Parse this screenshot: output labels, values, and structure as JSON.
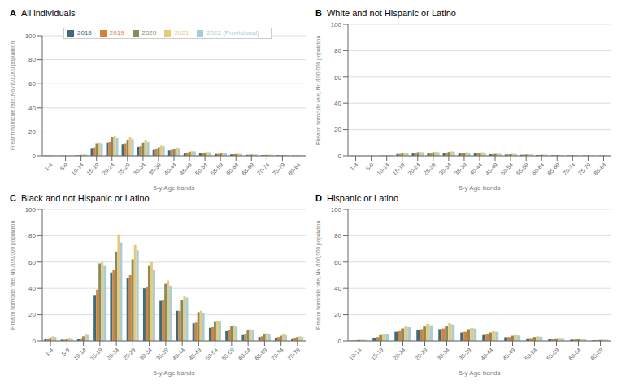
{
  "chart_data": [
    {
      "type": "bar",
      "annotations": [
        "A"
      ],
      "title": "All individuals",
      "xlabel": "5-y Age bands",
      "ylabel": "Firearm homicide rate, No./100,000 population",
      "categories": [
        "1-4",
        "5-9",
        "10-14",
        "15-19",
        "20-24",
        "25-29",
        "30-34",
        "35-39",
        "40-44",
        "45-49",
        "50-54",
        "55-59",
        "60-64",
        "65-69",
        "70-74",
        "75-79",
        "80-84"
      ],
      "series": [
        {
          "name": "2018",
          "color": "#3d6b7a",
          "values": [
            0.3,
            0.2,
            0.5,
            6.5,
            11.0,
            10.0,
            7.5,
            5.0,
            4.5,
            2.5,
            2.0,
            1.5,
            1.2,
            0.8,
            0.6,
            0.5,
            0.3
          ]
        },
        {
          "name": "2019",
          "color": "#d4813a",
          "values": [
            0.3,
            0.2,
            0.5,
            7.0,
            11.5,
            10.5,
            8.0,
            5.5,
            5.0,
            2.8,
            2.2,
            1.6,
            1.3,
            0.9,
            0.7,
            0.5,
            0.3
          ]
        },
        {
          "name": "2020",
          "color": "#8a8a5c",
          "values": [
            0.4,
            0.3,
            0.8,
            10.5,
            15.5,
            13.0,
            11.0,
            7.0,
            6.0,
            3.5,
            2.8,
            2.0,
            1.5,
            1.0,
            0.8,
            0.6,
            0.4
          ]
        },
        {
          "name": "2021",
          "color": "#e8c97a",
          "values": [
            0.5,
            0.4,
            1.2,
            11.0,
            17.0,
            15.5,
            13.0,
            8.5,
            7.0,
            4.0,
            3.2,
            2.5,
            1.8,
            1.2,
            1.0,
            0.8,
            0.5
          ]
        },
        {
          "name": "2022 (Provisional)",
          "color": "#a8cdd8",
          "values": [
            0.4,
            0.3,
            1.0,
            10.5,
            15.0,
            14.0,
            11.5,
            8.0,
            6.5,
            3.8,
            3.0,
            2.3,
            1.6,
            1.1,
            0.9,
            0.7,
            0.4
          ]
        }
      ],
      "ylim": [
        0,
        100
      ],
      "yticks": [
        0,
        20,
        40,
        60,
        80,
        100
      ],
      "grid": "y",
      "legend": "upper left"
    },
    {
      "type": "bar",
      "annotations": [
        "B"
      ],
      "title": "White and not Hispanic or Latino",
      "xlabel": "5-y Age bands",
      "ylabel": "Firearm homicide rate, No./100,000 population",
      "categories": [
        "1-4",
        "5-9",
        "10-14",
        "15-19",
        "20-24",
        "25-29",
        "30-34",
        "35-39",
        "40-44",
        "45-49",
        "50-54",
        "55-59",
        "60-64",
        "65-69",
        "70-74",
        "75-79",
        "80-84"
      ],
      "series": [
        {
          "name": "2018",
          "color": "#3d6b7a",
          "values": [
            0.1,
            0.1,
            0.2,
            1.4,
            2.2,
            2.2,
            2.3,
            2.0,
            2.0,
            1.2,
            1.0,
            0.8,
            0.6,
            0.4,
            0.3,
            0.3,
            0.2
          ]
        },
        {
          "name": "2019",
          "color": "#d4813a",
          "values": [
            0.1,
            0.1,
            0.2,
            1.5,
            2.3,
            2.3,
            2.5,
            2.1,
            2.2,
            1.3,
            1.1,
            0.9,
            0.7,
            0.5,
            0.4,
            0.3,
            0.2
          ]
        },
        {
          "name": "2020",
          "color": "#8a8a5c",
          "values": [
            0.1,
            0.1,
            0.3,
            2.0,
            2.8,
            2.8,
            3.0,
            2.5,
            2.5,
            1.5,
            1.3,
            1.0,
            0.8,
            0.6,
            0.5,
            0.4,
            0.3
          ]
        },
        {
          "name": "2021",
          "color": "#e8c97a",
          "values": [
            0.2,
            0.1,
            0.4,
            2.2,
            3.2,
            3.2,
            3.5,
            2.8,
            2.8,
            1.7,
            1.5,
            1.2,
            0.9,
            0.7,
            0.6,
            0.5,
            0.3
          ]
        },
        {
          "name": "2022 (Provisional)",
          "color": "#a8cdd8",
          "values": [
            0.1,
            0.1,
            0.3,
            2.0,
            2.8,
            2.8,
            3.2,
            2.5,
            2.5,
            1.6,
            1.4,
            1.1,
            0.8,
            0.6,
            0.5,
            0.4,
            0.3
          ]
        }
      ],
      "ylim": [
        0,
        100
      ],
      "yticks": [
        0,
        20,
        40,
        60,
        80,
        100
      ],
      "grid": "y"
    },
    {
      "type": "bar",
      "annotations": [
        "C"
      ],
      "title": "Black and not Hispanic or Latino",
      "xlabel": "5-y Age bands",
      "ylabel": "Firearm homicide rate, No./100,000 population",
      "categories": [
        "1-4",
        "5-9",
        "10-14",
        "15-19",
        "20-24",
        "25-29",
        "30-34",
        "35-39",
        "40-44",
        "45-49",
        "50-54",
        "55-59",
        "60-64",
        "65-69",
        "70-74",
        "75-79"
      ],
      "series": [
        {
          "name": "2018",
          "color": "#3d6b7a",
          "values": [
            1.5,
            1.0,
            1.5,
            35.0,
            52.0,
            48.0,
            40.0,
            30.5,
            23.0,
            13.5,
            10.0,
            7.5,
            4.5,
            3.0,
            2.5,
            2.0
          ]
        },
        {
          "name": "2019",
          "color": "#d4813a",
          "values": [
            1.5,
            1.0,
            2.0,
            39.0,
            54.0,
            50.0,
            41.0,
            31.0,
            23.0,
            14.0,
            10.5,
            8.0,
            5.0,
            3.5,
            3.0,
            2.5
          ]
        },
        {
          "name": "2020",
          "color": "#8a8a5c",
          "values": [
            2.5,
            1.5,
            3.5,
            59.0,
            68.0,
            62.0,
            57.0,
            43.5,
            31.0,
            22.0,
            14.5,
            11.5,
            8.5,
            5.5,
            4.0,
            3.0
          ]
        },
        {
          "name": "2021",
          "color": "#e8c97a",
          "values": [
            3.5,
            2.5,
            5.0,
            60.0,
            81.0,
            73.0,
            60.0,
            46.0,
            34.0,
            23.0,
            15.5,
            12.0,
            9.0,
            6.0,
            5.0,
            3.5
          ]
        },
        {
          "name": "2022 (Provisional)",
          "color": "#a8cdd8",
          "values": [
            3.0,
            2.0,
            4.5,
            57.0,
            75.0,
            69.0,
            54.0,
            42.0,
            33.0,
            21.5,
            15.0,
            11.0,
            8.0,
            5.5,
            4.5,
            3.0
          ]
        }
      ],
      "ylim": [
        0,
        100
      ],
      "yticks": [
        0,
        20,
        40,
        60,
        80,
        100
      ],
      "grid": "y"
    },
    {
      "type": "bar",
      "annotations": [
        "D"
      ],
      "title": "Hispanic or Latino",
      "xlabel": "5-y Age bands",
      "ylabel": "Firearm homicide rate, No./100,000 population",
      "categories": [
        "10-14",
        "15-19",
        "20-24",
        "25-29",
        "30-34",
        "35-39",
        "40-44",
        "45-49",
        "50-54",
        "55-59",
        "60-64",
        "65-69"
      ],
      "series": [
        {
          "name": "2018",
          "color": "#3d6b7a",
          "values": [
            0.3,
            2.5,
            7.0,
            8.5,
            9.0,
            6.5,
            4.5,
            2.8,
            2.0,
            1.5,
            1.0,
            0.5
          ]
        },
        {
          "name": "2019",
          "color": "#d4813a",
          "values": [
            0.4,
            3.0,
            7.5,
            9.0,
            9.5,
            7.0,
            5.0,
            3.0,
            2.2,
            1.6,
            1.1,
            0.6
          ]
        },
        {
          "name": "2020",
          "color": "#8a8a5c",
          "values": [
            0.8,
            4.5,
            9.5,
            11.0,
            11.5,
            9.0,
            6.5,
            4.0,
            3.0,
            2.0,
            1.5,
            0.8
          ]
        },
        {
          "name": "2021",
          "color": "#e8c97a",
          "values": [
            1.0,
            5.5,
            11.0,
            13.0,
            13.5,
            10.0,
            7.5,
            4.5,
            3.5,
            2.5,
            1.8,
            1.0
          ]
        },
        {
          "name": "2022 (Provisional)",
          "color": "#a8cdd8",
          "values": [
            0.8,
            5.0,
            10.5,
            12.0,
            12.5,
            9.5,
            7.0,
            4.2,
            3.2,
            2.2,
            1.6,
            0.9
          ]
        }
      ],
      "ylim": [
        0,
        100
      ],
      "yticks": [
        0,
        20,
        40,
        60,
        80,
        100
      ],
      "grid": "y"
    }
  ]
}
